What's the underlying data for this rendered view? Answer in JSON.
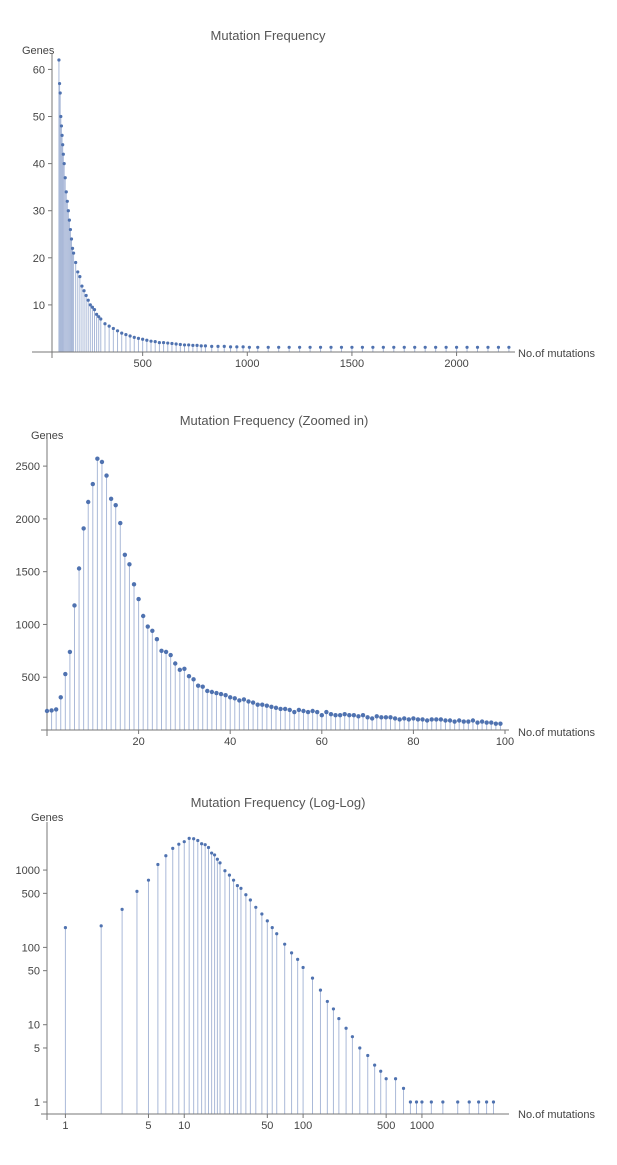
{
  "chart_data": [
    {
      "type": "scatter",
      "title": "Mutation Frequency",
      "xlabel": "No.of mutations",
      "ylabel": "Genes",
      "xlim": [
        0,
        2260
      ],
      "ylim": [
        0,
        62
      ],
      "xticks": [
        500,
        1000,
        1500,
        2000
      ],
      "yticks": [
        10,
        20,
        30,
        40,
        50,
        60
      ],
      "series": [
        {
          "x": [
            100,
            103,
            106,
            109,
            112,
            115,
            118,
            121,
            125,
            130,
            135,
            140,
            145,
            150,
            155,
            160,
            165,
            170,
            180,
            190,
            200,
            210,
            220,
            230,
            240,
            250,
            260,
            270,
            280,
            290,
            300,
            320,
            340,
            360,
            380,
            400,
            420,
            440,
            460,
            480,
            500,
            520,
            540,
            560,
            580,
            600,
            620,
            640,
            660,
            680,
            700,
            720,
            740,
            760,
            780,
            800,
            830,
            860,
            890,
            920,
            950,
            980,
            1010,
            1050,
            1100,
            1150,
            1200,
            1250,
            1300,
            1350,
            1400,
            1450,
            1500,
            1550,
            1600,
            1650,
            1700,
            1750,
            1800,
            1850,
            1900,
            1950,
            2000,
            2050,
            2100,
            2150,
            2200,
            2250
          ],
          "y": [
            62,
            57,
            55,
            50,
            48,
            46,
            44,
            42,
            40,
            37,
            34,
            32,
            30,
            28,
            26,
            24,
            22,
            21,
            19,
            17,
            16,
            14,
            13,
            12,
            11,
            10,
            9.5,
            9,
            8,
            7.5,
            7,
            6,
            5.5,
            5,
            4.5,
            4,
            3.7,
            3.4,
            3.1,
            2.9,
            2.7,
            2.5,
            2.3,
            2.2,
            2,
            2,
            1.9,
            1.8,
            1.7,
            1.6,
            1.5,
            1.5,
            1.4,
            1.4,
            1.3,
            1.3,
            1.2,
            1.2,
            1.2,
            1.1,
            1.1,
            1.1,
            1,
            1,
            1,
            1,
            1,
            1,
            1,
            1,
            1,
            1,
            1,
            1,
            1,
            1,
            1,
            1,
            1,
            1,
            1,
            1,
            1,
            1,
            1,
            1,
            1,
            1
          ]
        }
      ]
    },
    {
      "type": "scatter",
      "title": "Mutation Frequency (Zoomed in)",
      "xlabel": "No.of mutations",
      "ylabel": "Genes",
      "xlim": [
        0,
        100
      ],
      "ylim": [
        0,
        2700
      ],
      "xticks": [
        20,
        40,
        60,
        80,
        100
      ],
      "yticks": [
        500,
        1000,
        1500,
        2000,
        2500
      ],
      "series": [
        {
          "x": [
            0,
            1,
            2,
            3,
            4,
            5,
            6,
            7,
            8,
            9,
            10,
            11,
            12,
            13,
            14,
            15,
            16,
            17,
            18,
            19,
            20,
            21,
            22,
            23,
            24,
            25,
            26,
            27,
            28,
            29,
            30,
            31,
            32,
            33,
            34,
            35,
            36,
            37,
            38,
            39,
            40,
            41,
            42,
            43,
            44,
            45,
            46,
            47,
            48,
            49,
            50,
            51,
            52,
            53,
            54,
            55,
            56,
            57,
            58,
            59,
            60,
            61,
            62,
            63,
            64,
            65,
            66,
            67,
            68,
            69,
            70,
            71,
            72,
            73,
            74,
            75,
            76,
            77,
            78,
            79,
            80,
            81,
            82,
            83,
            84,
            85,
            86,
            87,
            88,
            89,
            90,
            91,
            92,
            93,
            94,
            95,
            96,
            97,
            98,
            99
          ],
          "y": [
            180,
            185,
            195,
            310,
            530,
            740,
            1180,
            1530,
            1910,
            2160,
            2330,
            2570,
            2540,
            2410,
            2190,
            2130,
            1960,
            1660,
            1570,
            1380,
            1240,
            1080,
            980,
            940,
            860,
            750,
            740,
            710,
            630,
            570,
            580,
            510,
            480,
            420,
            410,
            370,
            360,
            350,
            340,
            330,
            310,
            300,
            280,
            290,
            270,
            260,
            240,
            240,
            230,
            220,
            210,
            200,
            200,
            190,
            170,
            190,
            180,
            170,
            180,
            170,
            140,
            170,
            150,
            140,
            140,
            150,
            140,
            140,
            130,
            140,
            120,
            110,
            130,
            120,
            120,
            120,
            110,
            100,
            110,
            100,
            110,
            100,
            100,
            90,
            100,
            100,
            100,
            90,
            90,
            80,
            90,
            80,
            80,
            90,
            70,
            80,
            70,
            70,
            60,
            60
          ]
        }
      ]
    },
    {
      "type": "scatter",
      "title": "Mutation Frequency (Log-Log)",
      "xlabel": "No.of mutations",
      "ylabel": "Genes",
      "log_x": true,
      "log_y": true,
      "xlim": [
        0.7,
        5000
      ],
      "ylim": [
        0.7,
        3500
      ],
      "xticks": [
        1,
        5,
        10,
        50,
        100,
        500,
        1000
      ],
      "yticks": [
        1,
        5,
        10,
        50,
        100,
        500,
        1000
      ],
      "series": [
        {
          "x": [
            1,
            2,
            3,
            4,
            5,
            6,
            7,
            8,
            9,
            10,
            11,
            12,
            13,
            14,
            15,
            16,
            17,
            18,
            19,
            20,
            22,
            24,
            26,
            28,
            30,
            33,
            36,
            40,
            45,
            50,
            55,
            60,
            70,
            80,
            90,
            100,
            120,
            140,
            160,
            180,
            200,
            230,
            260,
            300,
            350,
            400,
            450,
            500,
            600,
            700,
            800,
            900,
            1000,
            1200,
            1500,
            2000,
            2500,
            3000,
            3500,
            4000
          ],
          "y": [
            180,
            190,
            310,
            530,
            740,
            1180,
            1530,
            1910,
            2160,
            2330,
            2570,
            2540,
            2410,
            2190,
            2130,
            1960,
            1660,
            1570,
            1380,
            1240,
            980,
            860,
            740,
            630,
            580,
            480,
            410,
            330,
            270,
            220,
            180,
            150,
            110,
            85,
            70,
            55,
            40,
            28,
            20,
            16,
            12,
            9,
            7,
            5,
            4,
            3,
            2.5,
            2,
            2,
            1.5,
            1,
            1,
            1,
            1,
            1,
            1,
            1,
            1,
            1,
            1
          ]
        }
      ]
    }
  ]
}
